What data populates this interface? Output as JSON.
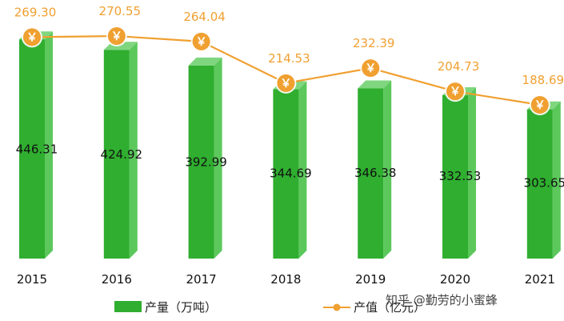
{
  "chart_data": {
    "type": "bar",
    "categories": [
      "2015",
      "2016",
      "2017",
      "2018",
      "2019",
      "2020",
      "2021"
    ],
    "series": [
      {
        "name": "产量（万吨）",
        "type": "bar",
        "values": [
          446.31,
          424.92,
          392.99,
          344.69,
          346.38,
          332.53,
          303.65
        ],
        "color": "#2fae2f"
      },
      {
        "name": "产值（亿元）",
        "type": "line",
        "values": [
          269.3,
          270.55,
          264.04,
          214.53,
          232.39,
          204.73,
          188.69
        ],
        "color": "#f0a030"
      }
    ],
    "bar_labels": [
      "446.31",
      "424.92",
      "392.99",
      "344.69",
      "346.38",
      "332.53",
      "303.65"
    ],
    "line_labels": [
      "269.30",
      "270.55",
      "264.04",
      "214.53",
      "232.39",
      "204.73",
      "188.69"
    ],
    "title": "",
    "xlabel": "",
    "ylabel": "",
    "legend_position": "bottom",
    "grid": false,
    "marker_symbol": "￥"
  },
  "watermark": "知乎 @勤劳的小蜜蜂"
}
